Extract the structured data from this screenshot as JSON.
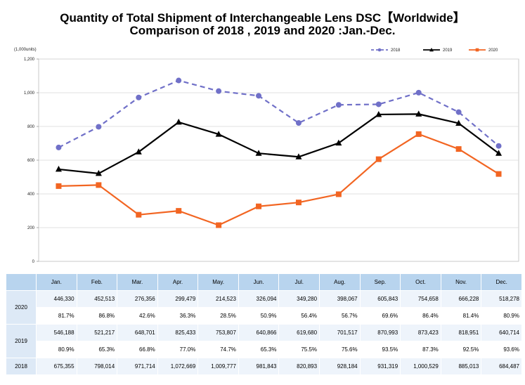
{
  "title_line1": "Quantity of Total Shipment of Interchangeable Lens DSC【Worldwide】",
  "title_line2": "Comparison of 2018 , 2019 and 2020 :Jan.-Dec.",
  "chart_data": {
    "type": "line",
    "title": "Quantity of Total Shipment of Interchangeable Lens DSC【Worldwide】 Comparison of 2018 , 2019 and 2020 :Jan.-Dec.",
    "unit_label": "(1,000units)",
    "categories": [
      "Jan.",
      "Feb.",
      "Mar.",
      "Apr.",
      "May.",
      "Jun.",
      "Jul.",
      "Aug.",
      "Sep.",
      "Oct.",
      "Nov.",
      "Dec."
    ],
    "ylim": [
      0,
      1200
    ],
    "yticks": [
      0,
      200,
      400,
      600,
      800,
      1000,
      1200
    ],
    "ytick_labels": [
      "0",
      "200",
      "400",
      "600",
      "800",
      "1,000",
      "1,200"
    ],
    "grid": true,
    "legend_position": "top-right",
    "series": [
      {
        "name": "2018",
        "color": "#7070c8",
        "dashed": true,
        "marker": "circle",
        "values": [
          675.355,
          798.014,
          971.714,
          1072.669,
          1009.777,
          981.843,
          820.893,
          928.184,
          931.319,
          1000.529,
          885.013,
          684.487
        ]
      },
      {
        "name": "2019",
        "color": "#000000",
        "dashed": false,
        "marker": "triangle",
        "values": [
          546.188,
          521.217,
          648.701,
          825.433,
          753.807,
          640.866,
          619.68,
          701.517,
          870.993,
          873.423,
          818.951,
          640.714
        ]
      },
      {
        "name": "2020",
        "color": "#f26522",
        "dashed": false,
        "marker": "square",
        "values": [
          446.33,
          452.513,
          276.356,
          299.479,
          214.523,
          326.094,
          349.28,
          398.067,
          605.843,
          754.658,
          666.228,
          518.278
        ]
      }
    ]
  },
  "table": {
    "months": [
      "Jan.",
      "Feb.",
      "Mar.",
      "Apr.",
      "May.",
      "Jun.",
      "Jul.",
      "Aug.",
      "Sep.",
      "Oct.",
      "Nov.",
      "Dec."
    ],
    "rows": [
      {
        "year": "2020",
        "quantities": [
          "446,330",
          "452,513",
          "276,356",
          "299,479",
          "214,523",
          "326,094",
          "349,280",
          "398,067",
          "605,843",
          "754,658",
          "666,228",
          "518,278"
        ],
        "percents": [
          "81.7%",
          "86.8%",
          "42.6%",
          "36.3%",
          "28.5%",
          "50.9%",
          "56.4%",
          "56.7%",
          "69.6%",
          "86.4%",
          "81.4%",
          "80.9%"
        ]
      },
      {
        "year": "2019",
        "quantities": [
          "546,188",
          "521,217",
          "648,701",
          "825,433",
          "753,807",
          "640,866",
          "619,680",
          "701,517",
          "870,993",
          "873,423",
          "818,951",
          "640,714"
        ],
        "percents": [
          "80.9%",
          "65.3%",
          "66.8%",
          "77.0%",
          "74.7%",
          "65.3%",
          "75.5%",
          "75.6%",
          "93.5%",
          "87.3%",
          "92.5%",
          "93.6%"
        ]
      },
      {
        "year": "2018",
        "quantities": [
          "675,355",
          "798,014",
          "971,714",
          "1,072,669",
          "1,009,777",
          "981,843",
          "820,893",
          "928,184",
          "931,319",
          "1,000,529",
          "885,013",
          "684,487"
        ]
      }
    ]
  }
}
